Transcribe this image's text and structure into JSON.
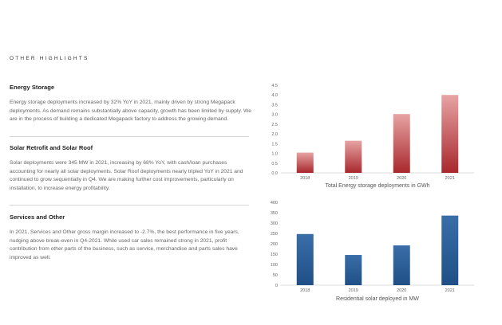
{
  "page": {
    "heading": "OTHER HIGHLIGHTS"
  },
  "sections": [
    {
      "title": "Energy Storage",
      "body": "Energy storage deployments increased by 32% YoY in 2021, mainly driven by strong Megapack deployments. As demand remains substantially above capacity, growth has been limited by supply.  We are in the process of building a dedicated Megapack factory to address the growing demand."
    },
    {
      "title": "Solar Retrofit and Solar Roof",
      "body": "Solar deployments were 345 MW in 2021, increasing by 68% YoY, with cash/loan purchases accounting for nearly all solar deployments. Solar Roof deployments nearly tripled YoY in 2021 and continued to grow sequentially in Q4. We are making further cost improvements, particularly on installation, to increase energy profitability."
    },
    {
      "title": "Services and Other",
      "body": "In 2021, Services and Other gross margin increased to -2.7%, the best performance in five years, nudging above break-even in Q4-2021. While used car sales remained strong in 2021, profit contribution from other parts of the business, such as service, merchandise and parts sales have improved as well."
    }
  ],
  "chart_data": [
    {
      "type": "bar",
      "title": "Total Energy storage deployments in GWh",
      "categories": [
        "2018",
        "2019",
        "2020",
        "2021"
      ],
      "values": [
        1.04,
        1.65,
        3.02,
        4.0
      ],
      "ylim": [
        0,
        4.5
      ],
      "yticks": [
        "0.0",
        "0.5",
        "1.0",
        "1.5",
        "2.0",
        "2.5",
        "3.0",
        "3.5",
        "4.0",
        "4.5"
      ],
      "grid": false,
      "bar_color_top": "#e7a3a3",
      "bar_color_bottom": "#a8282d"
    },
    {
      "type": "bar",
      "title": "Residential solar deployed in MW",
      "categories": [
        "2018",
        "2019",
        "2020",
        "2021"
      ],
      "values": [
        247,
        146,
        192,
        336
      ],
      "ylim": [
        0,
        400
      ],
      "yticks": [
        "0",
        "50",
        "100",
        "150",
        "200",
        "250",
        "300",
        "350",
        "400"
      ],
      "grid": false,
      "bar_color_top": "#3a6ea8",
      "bar_color_bottom": "#1f4f86"
    }
  ],
  "colors": {
    "text": "#333333",
    "body_text": "#666666",
    "divider": "#d4d4d4"
  }
}
